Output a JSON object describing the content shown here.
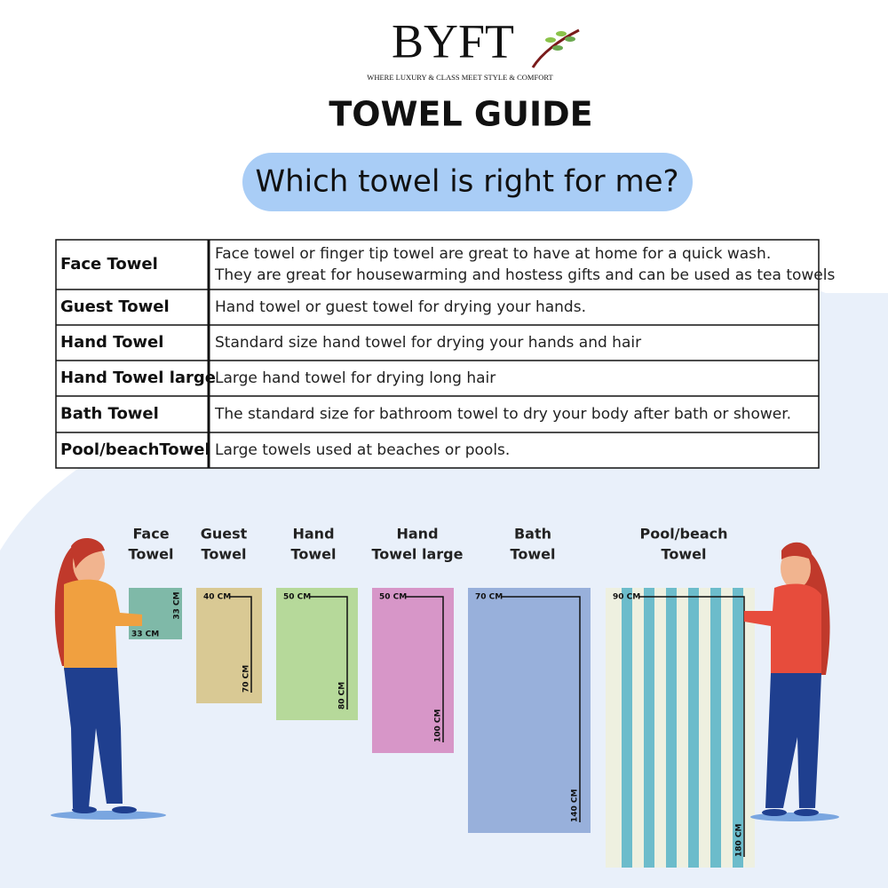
{
  "header": {
    "brand": "BYFT",
    "tagline": "WHERE LUXURY & CLASS MEET STYLE & COMFORT",
    "title": "TOWEL GUIDE",
    "subtitle": "Which towel is right for me?"
  },
  "table": {
    "rows": [
      {
        "name": "Face Towel",
        "description": [
          "Face towel or finger tip towel are great to have at home for a quick wash.",
          "They are great for housewarming and hostess gifts and can be used as tea towels"
        ]
      },
      {
        "name": "Guest Towel",
        "description": [
          "Hand towel or guest towel for drying your hands."
        ]
      },
      {
        "name": "Hand Towel",
        "description": [
          "Standard size hand towel for drying your hands and hair"
        ]
      },
      {
        "name": "Hand Towel large",
        "description": [
          "Large hand towel for drying long hair"
        ]
      },
      {
        "name": "Bath Towel",
        "description": [
          "The standard size for bathroom towel to dry your body after bath or shower."
        ]
      },
      {
        "name": "Pool/beachTowel",
        "description": [
          "Large towels used at beaches or pools."
        ]
      }
    ]
  },
  "towels": [
    {
      "label": [
        "Face",
        "Towel"
      ],
      "width": "33 CM",
      "length": "33 CM"
    },
    {
      "label": [
        "Guest",
        "Towel"
      ],
      "width": "40 CM",
      "length": "70 CM"
    },
    {
      "label": [
        "Hand",
        "Towel"
      ],
      "width": "50 CM",
      "length": "80 CM"
    },
    {
      "label": [
        "Hand",
        "Towel large"
      ],
      "width": "50 CM",
      "length": "100 CM"
    },
    {
      "label": [
        "Bath",
        "Towel"
      ],
      "width": "70 CM",
      "length": "140 CM"
    },
    {
      "label": [
        "Pool/beach",
        "Towel"
      ],
      "width": "90 CM",
      "length": "180 CM"
    }
  ]
}
